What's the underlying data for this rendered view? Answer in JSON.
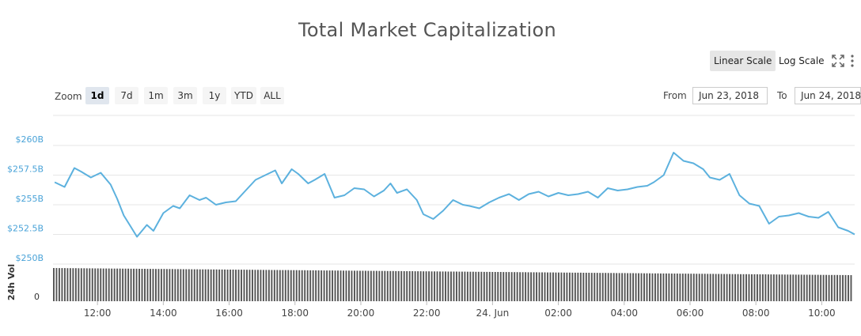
{
  "title": "Total Market Capitalization",
  "scale": {
    "linear_label": "Linear Scale",
    "log_label": "Log Scale",
    "active": "linear"
  },
  "zoom": {
    "label": "Zoom",
    "buttons": [
      "1d",
      "7d",
      "1m",
      "3m",
      "1y",
      "YTD",
      "ALL"
    ],
    "active": "1d"
  },
  "range": {
    "from_label": "From",
    "from_value": "Jun 23, 2018",
    "to_label": "To",
    "to_value": "Jun 24, 2018"
  },
  "colors": {
    "line": "#5cb1de",
    "volume": "#555555",
    "axis_label": "#4aa3d8",
    "grid": "#e6e6e6"
  },
  "icons": [
    "expand-icon",
    "menu-icon"
  ],
  "chart_data": {
    "type": "line",
    "title": "Total Market Capitalization",
    "ylim": [
      250,
      262.5
    ],
    "y_ticks": [
      250,
      252.5,
      255,
      257.5,
      260
    ],
    "y_tick_labels": [
      "$250B",
      "$252.5B",
      "$255B",
      "$257.5B",
      "$260B"
    ],
    "x_tick_labels": [
      "12:00",
      "14:00",
      "16:00",
      "18:00",
      "20:00",
      "22:00",
      "24. Jun",
      "02:00",
      "04:00",
      "06:00",
      "08:00",
      "10:00"
    ],
    "x_tick_hours": [
      12,
      14,
      16,
      18,
      20,
      22,
      24,
      26,
      28,
      30,
      32,
      34
    ],
    "xlim_hours": [
      10.65,
      35.0
    ],
    "series": [
      {
        "x": [
          10.7,
          11.0,
          11.3,
          11.5,
          11.8,
          12.1,
          12.4,
          12.6,
          12.8,
          13.0,
          13.2,
          13.5,
          13.7,
          14.0,
          14.3,
          14.5,
          14.8,
          15.1,
          15.3,
          15.6,
          15.9,
          16.2,
          16.5,
          16.8,
          17.1,
          17.4,
          17.6,
          17.9,
          18.1,
          18.4,
          18.6,
          18.9,
          19.2,
          19.5,
          19.8,
          20.1,
          20.4,
          20.7,
          20.9,
          21.1,
          21.4,
          21.7,
          21.9,
          22.2,
          22.5,
          22.8,
          23.1,
          23.3,
          23.6,
          23.9,
          24.2,
          24.5,
          24.8,
          25.1,
          25.4,
          25.7,
          26.0,
          26.3,
          26.6,
          26.9,
          27.2,
          27.5,
          27.8,
          28.1,
          28.4,
          28.7,
          28.9,
          29.2,
          29.5,
          29.8,
          30.1,
          30.4,
          30.6,
          30.9,
          31.2,
          31.5,
          31.8,
          32.1,
          32.4,
          32.7,
          33.0,
          33.3,
          33.6,
          33.9,
          34.2,
          34.5,
          34.8,
          35.0
        ],
        "y": [
          256.9,
          256.5,
          258.1,
          257.8,
          257.3,
          257.7,
          256.7,
          255.5,
          254.1,
          253.2,
          252.3,
          253.3,
          252.8,
          254.3,
          254.9,
          254.7,
          255.8,
          255.4,
          255.6,
          255.0,
          255.2,
          255.3,
          256.2,
          257.1,
          257.5,
          257.9,
          256.8,
          258.0,
          257.6,
          256.8,
          257.1,
          257.6,
          255.6,
          255.8,
          256.4,
          256.3,
          255.7,
          256.2,
          256.8,
          256.0,
          256.3,
          255.4,
          254.2,
          253.8,
          254.5,
          255.4,
          255.0,
          254.9,
          254.7,
          255.2,
          255.6,
          255.9,
          255.4,
          255.9,
          256.1,
          255.7,
          256.0,
          255.8,
          255.9,
          256.1,
          255.6,
          256.4,
          256.2,
          256.3,
          256.5,
          256.6,
          256.9,
          257.5,
          259.4,
          258.7,
          258.5,
          258.0,
          257.3,
          257.1,
          257.6,
          255.8,
          255.1,
          254.9,
          253.4,
          254.0,
          254.1,
          254.3,
          254.0,
          253.9,
          254.4,
          253.1,
          252.8,
          252.5
        ]
      }
    ],
    "volume": {
      "ylabel": "24h Vol",
      "y_tick_labels": [
        "0"
      ],
      "start_level": 0.84,
      "end_level": 0.66
    }
  }
}
